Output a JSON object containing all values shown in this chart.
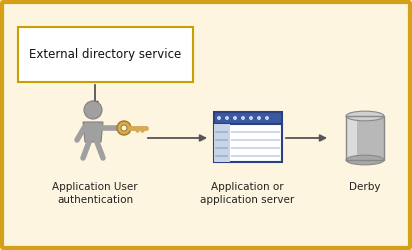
{
  "bg_outer": "#f5e6a0",
  "bg_inner": "#fdf5e0",
  "border_color": "#d4a017",
  "box_text": "External directory service",
  "arrow_color": "#555555",
  "label1": "Application User\nauthentication",
  "label2": "Application or\napplication server",
  "label3": "Derby",
  "person_color": "#a0a0a0",
  "person_edge": "#808080",
  "key_body": "#d4aa55",
  "key_edge": "#a07820",
  "app_title_bar": "#3a5aa0",
  "app_title_bar_light": "#6080c0",
  "app_bg": "#ffffff",
  "app_left_panel": "#c8d4e8",
  "app_line": "#d0d8e8",
  "cyl_top": "#d0d0d0",
  "cyl_side": "#b8b8b8",
  "cyl_grad": "#e0e0e0"
}
